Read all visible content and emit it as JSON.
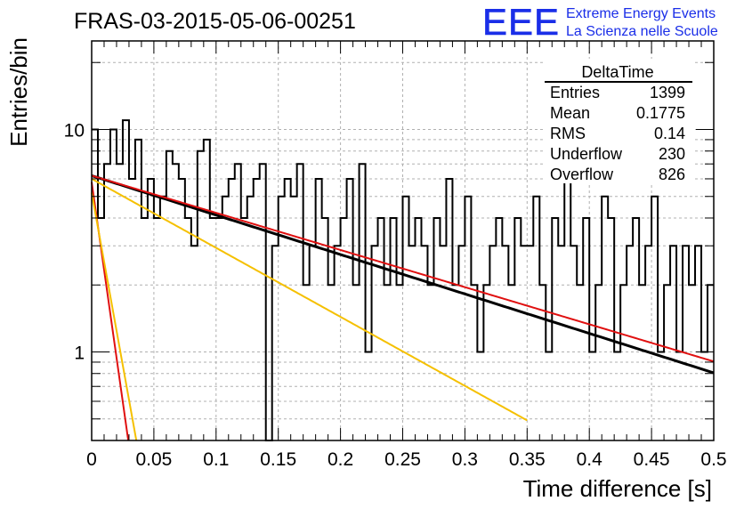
{
  "header": {
    "run_title": "FRAS-03-2015-05-06-00251",
    "logo_text": "EEE",
    "org_line1": "Extreme Energy Events",
    "org_line2": "La Scienza nelle Scuole"
  },
  "colors": {
    "histogram": "#000000",
    "fit_black": "#000000",
    "fit_red": "#e01010",
    "fit_yellow": "#f5c000",
    "logo_blue": "#1a2ee8",
    "grid": "#b0b0b0"
  },
  "chart_data": {
    "type": "bar",
    "histogram_style": "step",
    "xlabel": "Time difference [s]",
    "ylabel": "Entries/bin",
    "xlim": [
      0,
      0.5
    ],
    "ylim": [
      0.4,
      25
    ],
    "log_y": true,
    "grid": true,
    "x_ticks": [
      "0",
      "0.05",
      "0.1",
      "0.15",
      "0.2",
      "0.25",
      "0.3",
      "0.35",
      "0.4",
      "0.45",
      "0.5"
    ],
    "y_ticks": [
      "1",
      "10"
    ],
    "bin_width": 0.005,
    "bin_contents": [
      10,
      4,
      7,
      10,
      7,
      11,
      6,
      9,
      4,
      6,
      4,
      5,
      8,
      7,
      6,
      4,
      3,
      8,
      9,
      4,
      4,
      5,
      6,
      7,
      4,
      5,
      6,
      7,
      0,
      3,
      5,
      6,
      5,
      7,
      2,
      3,
      6,
      4,
      2,
      3,
      4,
      6,
      2,
      7,
      1,
      3,
      4,
      2,
      4,
      2,
      5,
      3,
      4,
      3,
      2,
      4,
      3,
      6,
      2,
      3,
      5,
      2,
      1,
      2,
      3,
      4,
      3,
      2,
      4,
      3,
      3,
      5,
      2,
      1,
      4,
      3,
      6,
      3,
      2,
      4,
      1,
      2,
      5,
      4,
      1,
      2,
      3,
      4,
      2,
      3,
      5,
      1,
      2,
      3,
      1,
      3,
      2,
      3,
      1,
      2
    ],
    "fits": [
      {
        "color": "black",
        "amplitude": 6.2,
        "tau": 0.245,
        "x_range": [
          0,
          0.5
        ]
      },
      {
        "color": "red",
        "amplitude": 6.2,
        "tau": 0.26,
        "x_range": [
          0,
          0.5
        ]
      },
      {
        "color": "yellow",
        "amplitude": 6.0,
        "tau": 0.14,
        "x_range": [
          0,
          0.35
        ]
      },
      {
        "color": "red",
        "amplitude": 5.8,
        "tau": 0.011,
        "x_range": [
          0,
          0.05
        ]
      },
      {
        "color": "yellow",
        "amplitude": 5.2,
        "tau": 0.014,
        "x_range": [
          0,
          0.05
        ]
      }
    ],
    "stats": {
      "name": "DeltaTime",
      "rows": [
        {
          "label": "Entries",
          "value": "1399"
        },
        {
          "label": "Mean",
          "value": "0.1775"
        },
        {
          "label": "RMS",
          "value": "0.14"
        },
        {
          "label": "Underflow",
          "value": "230"
        },
        {
          "label": "Overflow",
          "value": "826"
        }
      ]
    }
  }
}
